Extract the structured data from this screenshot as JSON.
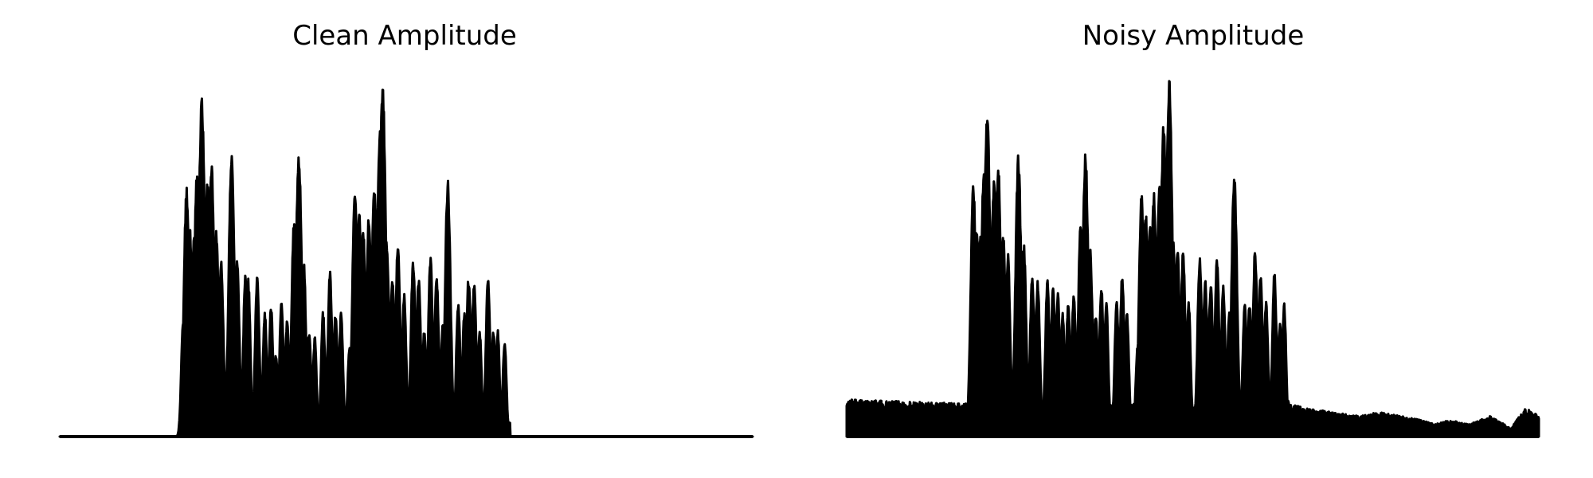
{
  "chart_data": [
    {
      "type": "area",
      "title": "Clean Amplitude",
      "xlabel": "",
      "ylabel": "",
      "axes_visible": false,
      "grid": false,
      "ylim": [
        0,
        1
      ],
      "color": "#000000",
      "series": [
        {
          "peaks": [
            [
              0.175,
              0.0
            ],
            [
              0.178,
              0.32
            ],
            [
              0.183,
              0.7
            ],
            [
              0.188,
              0.58
            ],
            [
              0.194,
              0.57
            ],
            [
              0.198,
              0.75
            ],
            [
              0.205,
              0.95
            ],
            [
              0.209,
              0.05
            ],
            [
              0.213,
              0.72
            ],
            [
              0.219,
              0.77
            ],
            [
              0.226,
              0.58
            ],
            [
              0.233,
              0.49
            ],
            [
              0.238,
              0.05
            ],
            [
              0.248,
              0.79
            ],
            [
              0.256,
              0.5
            ],
            [
              0.262,
              0.05
            ],
            [
              0.268,
              0.46
            ],
            [
              0.272,
              0.44
            ],
            [
              0.276,
              0.05
            ],
            [
              0.285,
              0.45
            ],
            [
              0.296,
              0.35
            ],
            [
              0.305,
              0.37
            ],
            [
              0.312,
              0.23
            ],
            [
              0.32,
              0.38
            ],
            [
              0.328,
              0.33
            ],
            [
              0.338,
              0.6
            ],
            [
              0.345,
              0.8
            ],
            [
              0.352,
              0.5
            ],
            [
              0.36,
              0.3
            ],
            [
              0.368,
              0.28
            ],
            [
              0.372,
              0.05
            ],
            [
              0.38,
              0.35
            ],
            [
              0.39,
              0.46
            ],
            [
              0.398,
              0.35
            ],
            [
              0.406,
              0.35
            ],
            [
              0.412,
              0.05
            ],
            [
              0.418,
              0.25
            ],
            [
              0.426,
              0.69
            ],
            [
              0.432,
              0.64
            ],
            [
              0.438,
              0.58
            ],
            [
              0.446,
              0.62
            ],
            [
              0.454,
              0.7
            ],
            [
              0.462,
              0.86
            ],
            [
              0.466,
              1.0
            ],
            [
              0.472,
              0.55
            ],
            [
              0.48,
              0.45
            ],
            [
              0.488,
              0.54
            ],
            [
              0.497,
              0.4
            ],
            [
              0.502,
              0.05
            ],
            [
              0.51,
              0.5
            ],
            [
              0.518,
              0.45
            ],
            [
              0.526,
              0.3
            ],
            [
              0.535,
              0.5
            ],
            [
              0.544,
              0.45
            ],
            [
              0.553,
              0.33
            ],
            [
              0.56,
              0.72
            ],
            [
              0.568,
              0.05
            ],
            [
              0.575,
              0.38
            ],
            [
              0.584,
              0.35
            ],
            [
              0.59,
              0.45
            ],
            [
              0.598,
              0.44
            ],
            [
              0.606,
              0.3
            ],
            [
              0.611,
              0.05
            ],
            [
              0.618,
              0.45
            ],
            [
              0.626,
              0.3
            ],
            [
              0.632,
              0.3
            ],
            [
              0.636,
              0.05
            ],
            [
              0.642,
              0.27
            ],
            [
              0.65,
              0.0
            ]
          ]
        }
      ]
    },
    {
      "type": "area",
      "title": "Noisy Amplitude",
      "xlabel": "",
      "ylabel": "",
      "axes_visible": false,
      "grid": false,
      "ylim": [
        0,
        1
      ],
      "color": "#000000",
      "series": [
        {
          "peaks": [
            [
              0.18,
              0.0
            ],
            [
              0.183,
              0.71
            ],
            [
              0.188,
              0.6
            ],
            [
              0.193,
              0.58
            ],
            [
              0.198,
              0.75
            ],
            [
              0.203,
              0.92
            ],
            [
              0.208,
              0.08
            ],
            [
              0.213,
              0.72
            ],
            [
              0.219,
              0.76
            ],
            [
              0.226,
              0.58
            ],
            [
              0.233,
              0.51
            ],
            [
              0.238,
              0.08
            ],
            [
              0.248,
              0.79
            ],
            [
              0.256,
              0.54
            ],
            [
              0.262,
              0.08
            ],
            [
              0.268,
              0.46
            ],
            [
              0.276,
              0.44
            ],
            [
              0.282,
              0.08
            ],
            [
              0.29,
              0.44
            ],
            [
              0.298,
              0.42
            ],
            [
              0.305,
              0.4
            ],
            [
              0.312,
              0.35
            ],
            [
              0.32,
              0.38
            ],
            [
              0.328,
              0.4
            ],
            [
              0.338,
              0.6
            ],
            [
              0.345,
              0.79
            ],
            [
              0.352,
              0.52
            ],
            [
              0.36,
              0.35
            ],
            [
              0.368,
              0.42
            ],
            [
              0.375,
              0.38
            ],
            [
              0.382,
              0.08
            ],
            [
              0.39,
              0.38
            ],
            [
              0.398,
              0.45
            ],
            [
              0.405,
              0.35
            ],
            [
              0.412,
              0.08
            ],
            [
              0.42,
              0.25
            ],
            [
              0.426,
              0.68
            ],
            [
              0.432,
              0.63
            ],
            [
              0.438,
              0.6
            ],
            [
              0.444,
              0.68
            ],
            [
              0.452,
              0.7
            ],
            [
              0.458,
              0.88
            ],
            [
              0.466,
              1.0
            ],
            [
              0.472,
              0.55
            ],
            [
              0.478,
              0.52
            ],
            [
              0.486,
              0.52
            ],
            [
              0.494,
              0.38
            ],
            [
              0.502,
              0.08
            ],
            [
              0.51,
              0.5
            ],
            [
              0.518,
              0.44
            ],
            [
              0.526,
              0.43
            ],
            [
              0.535,
              0.5
            ],
            [
              0.544,
              0.42
            ],
            [
              0.553,
              0.36
            ],
            [
              0.56,
              0.74
            ],
            [
              0.568,
              0.08
            ],
            [
              0.575,
              0.38
            ],
            [
              0.582,
              0.38
            ],
            [
              0.59,
              0.52
            ],
            [
              0.598,
              0.46
            ],
            [
              0.606,
              0.38
            ],
            [
              0.611,
              0.08
            ],
            [
              0.618,
              0.46
            ],
            [
              0.626,
              0.32
            ],
            [
              0.632,
              0.38
            ],
            [
              0.638,
              0.1
            ]
          ],
          "noise_floor": [
            [
              0.0,
              0.09
            ],
            [
              0.18,
              0.08
            ],
            [
              0.64,
              0.08
            ],
            [
              0.66,
              0.07
            ],
            [
              0.7,
              0.06
            ],
            [
              0.74,
              0.05
            ],
            [
              0.77,
              0.06
            ],
            [
              0.8,
              0.05
            ],
            [
              0.83,
              0.04
            ],
            [
              0.85,
              0.03
            ],
            [
              0.87,
              0.04
            ],
            [
              0.9,
              0.03
            ],
            [
              0.93,
              0.05
            ],
            [
              0.96,
              0.02
            ],
            [
              0.98,
              0.07
            ],
            [
              1.0,
              0.05
            ]
          ]
        }
      ]
    }
  ]
}
